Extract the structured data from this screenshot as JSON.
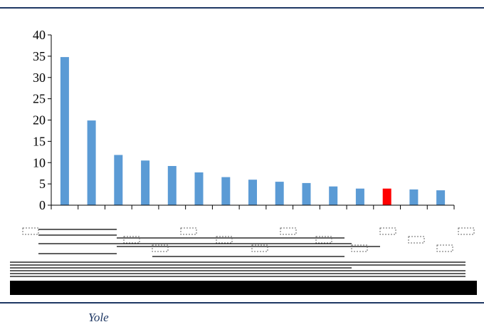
{
  "source_text": "Yole",
  "chart_data": {
    "type": "bar",
    "categories": [
      "",
      "",
      "",
      "",
      "",
      "",
      "",
      "",
      "",
      "",
      "",
      "",
      "",
      "",
      ""
    ],
    "values": [
      34.8,
      19.9,
      11.8,
      10.5,
      9.2,
      7.7,
      6.6,
      6.0,
      5.5,
      5.2,
      4.4,
      3.9,
      3.9,
      3.7,
      3.5
    ],
    "highlight_index": 12,
    "colors": {
      "bar": "#5b9bd5",
      "highlight": "#ff0000",
      "axis": "#000000"
    },
    "ylim": [
      0,
      40
    ],
    "yticks": [
      0,
      5,
      10,
      15,
      20,
      25,
      30,
      35,
      40
    ],
    "title": "",
    "xlabel": "",
    "ylabel": "",
    "grid": false,
    "legend": "none"
  }
}
